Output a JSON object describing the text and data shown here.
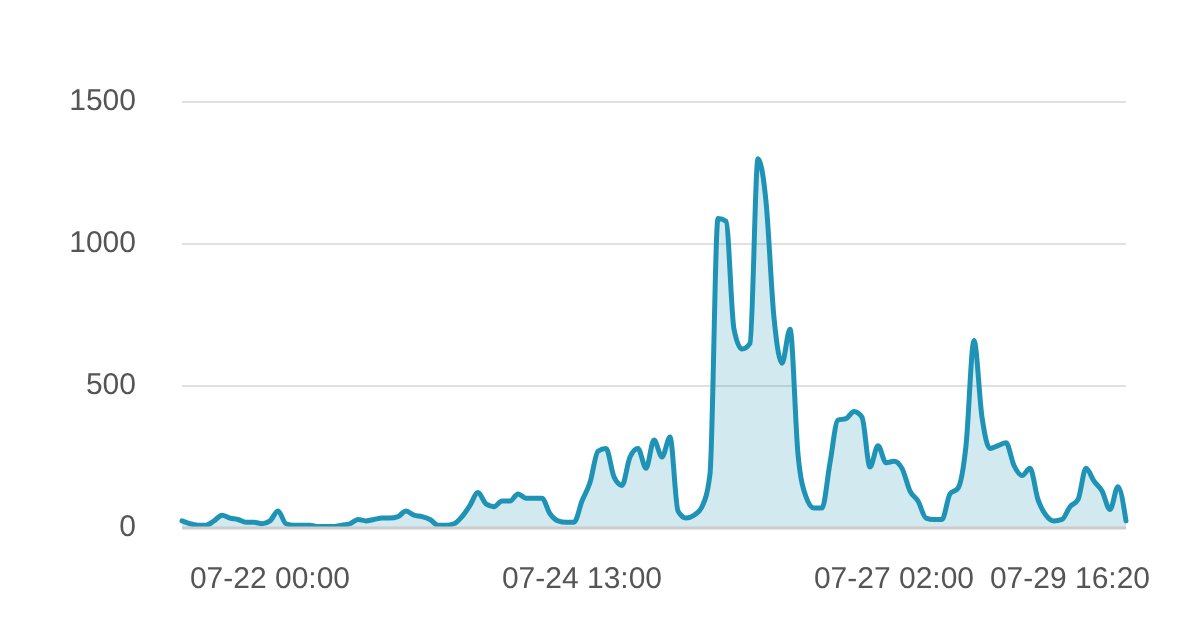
{
  "chart_data": {
    "type": "area",
    "categories": [
      null,
      null,
      null,
      null,
      null,
      null,
      null,
      null,
      null,
      null,
      null,
      "07-22 00:00",
      null,
      null,
      null,
      null,
      null,
      null,
      null,
      null,
      null,
      null,
      null,
      null,
      null,
      null,
      null,
      null,
      null,
      null,
      null,
      null,
      null,
      null,
      null,
      null,
      null,
      null,
      null,
      null,
      null,
      null,
      null,
      null,
      null,
      null,
      null,
      null,
      null,
      null,
      "07-24 13:00",
      null,
      null,
      null,
      null,
      null,
      null,
      null,
      null,
      null,
      null,
      null,
      null,
      null,
      null,
      null,
      null,
      null,
      null,
      null,
      null,
      null,
      null,
      null,
      null,
      null,
      null,
      null,
      null,
      null,
      null,
      null,
      null,
      null,
      null,
      null,
      null,
      null,
      null,
      "07-27 02:00",
      null,
      null,
      null,
      null,
      null,
      null,
      null,
      null,
      null,
      null,
      null,
      null,
      null,
      null,
      null,
      null,
      null,
      null,
      null,
      null,
      null,
      "07-29 16:20",
      null,
      null,
      null,
      null,
      null,
      null,
      null
    ],
    "series": [
      {
        "color": "#1f93b5",
        "values": [
          25,
          15,
          10,
          10,
          25,
          45,
          35,
          30,
          20,
          20,
          15,
          25,
          60,
          15,
          10,
          10,
          10,
          5,
          5,
          5,
          10,
          15,
          30,
          25,
          30,
          35,
          35,
          40,
          60,
          45,
          40,
          30,
          10,
          10,
          15,
          40,
          80,
          125,
          85,
          75,
          95,
          95,
          120,
          105,
          105,
          105,
          50,
          25,
          20,
          20,
          95,
          160,
          270,
          280,
          180,
          150,
          250,
          280,
          210,
          310,
          250,
          320,
          60,
          35,
          45,
          75,
          190,
          1090,
          1080,
          700,
          630,
          650,
          1300,
          1150,
          740,
          580,
          700,
          260,
          110,
          70,
          70,
          230,
          380,
          385,
          410,
          390,
          215,
          290,
          230,
          235,
          210,
          130,
          95,
          35,
          30,
          30,
          120,
          140,
          290,
          660,
          390,
          280,
          290,
          300,
          220,
          185,
          210,
          100,
          45,
          25,
          30,
          75,
          100,
          210,
          165,
          130,
          65,
          145,
          25
        ]
      }
    ],
    "ylim": [
      0,
      1500
    ],
    "yticks": [
      0,
      500,
      1000,
      1500
    ],
    "grid": "y",
    "marker": "none",
    "line_style": "solid"
  }
}
